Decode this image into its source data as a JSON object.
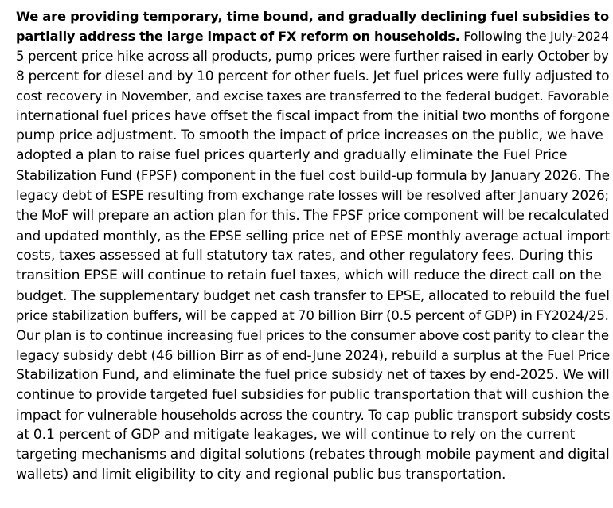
{
  "document": {
    "lead_line_1": "We are providing temporary, time bound, and gradually declining fuel subsidies to",
    "lead_line_2": "partially address the large impact of FX reform on households.",
    "lines": [
      " Following the July-2024",
      "5 percent price hike across all products, pump prices were further raised in early October by",
      "8 percent for diesel and by 10 percent for other fuels. Jet fuel prices were fully adjusted to",
      "cost recovery in November, and excise taxes are transferred to the federal budget. Favorable",
      "international fuel prices have offset the fiscal impact from the initial two months of forgone",
      "pump price adjustment. To smooth the impact of price increases on the public, we have",
      "adopted a plan to raise fuel prices quarterly and gradually eliminate the Fuel Price",
      "Stabilization Fund (FPSF) component in the fuel cost build-up formula by January 2026. The",
      "legacy debt of ESPE resulting from exchange rate losses will be resolved after January 2026;",
      "the MoF will prepare an action plan for this. The FPSF price component will be recalculated",
      "and updated monthly, as the EPSE selling price net of EPSE monthly average actual import",
      "costs, taxes assessed at full statutory tax rates, and other regulatory fees. During this",
      "transition EPSE will continue to retain fuel taxes, which will reduce the direct call on the",
      "budget. The supplementary budget net cash transfer to EPSE, allocated to rebuild the fuel",
      "price stabilization buffers, will be capped at 70 billion Birr (0.5 percent of GDP) in FY2024/25.",
      "Our plan is to continue increasing fuel prices to the consumer above cost parity to clear the",
      "legacy subsidy debt (46 billion Birr as of end-June 2024), rebuild a surplus at the Fuel Price",
      "Stabilization Fund, and eliminate the fuel price subsidy net of taxes by end-2025. We will",
      "continue to provide targeted fuel subsidies for public transportation that will cushion the",
      "impact for vulnerable households across the country. To cap public transport subsidy costs",
      "at 0.1 percent of GDP and mitigate leakages, we will continue to rely on the current",
      "targeting mechanisms and digital solutions (rebates through mobile payment and digital",
      "wallets) and limit eligibility to city and regional public bus transportation."
    ]
  }
}
